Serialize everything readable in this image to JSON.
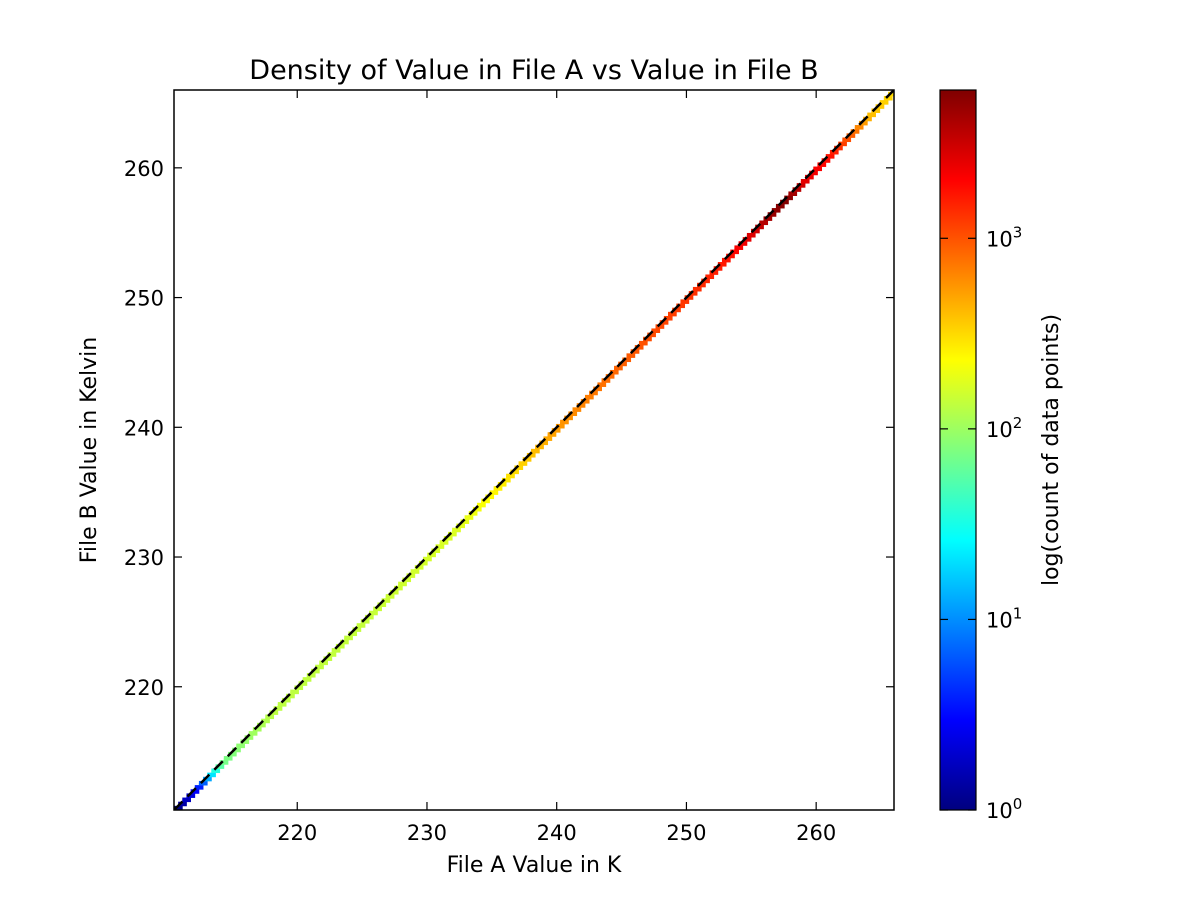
{
  "chart_data": {
    "type": "heatmap",
    "title": "Density of Value in File A vs Value in File B",
    "xlabel": "File A Value in K",
    "ylabel": "File B Value in Kelvin",
    "xlim": [
      210.5,
      266
    ],
    "ylim": [
      210.5,
      266
    ],
    "x_ticks": [
      220,
      230,
      240,
      250,
      260
    ],
    "y_ticks": [
      220,
      230,
      240,
      250,
      260
    ],
    "grid": false,
    "reference_line": {
      "style": "dashed",
      "color": "#000000",
      "from": [
        210.5,
        210.5
      ],
      "to": [
        266,
        266
      ]
    },
    "colorbar": {
      "label": "log(count of data points)",
      "scale": "log",
      "range": [
        1,
        6000
      ],
      "ticks": [
        {
          "value": 1,
          "base": "10",
          "exp": "0"
        },
        {
          "value": 10,
          "base": "10",
          "exp": "1"
        },
        {
          "value": 100,
          "base": "10",
          "exp": "2"
        },
        {
          "value": 1000,
          "base": "10",
          "exp": "3"
        }
      ],
      "colormap": [
        "#00007f",
        "#0000ff",
        "#007fff",
        "#00ffff",
        "#7fff7f",
        "#ffff00",
        "#ff7f00",
        "#ff0000",
        "#7f0000"
      ]
    },
    "density_profile": [
      {
        "x": 210.5,
        "count": 1
      },
      {
        "x": 211.5,
        "count": 2
      },
      {
        "x": 212.3,
        "count": 4
      },
      {
        "x": 213.0,
        "count": 15
      },
      {
        "x": 214.0,
        "count": 70
      },
      {
        "x": 218.0,
        "count": 130
      },
      {
        "x": 225.0,
        "count": 140
      },
      {
        "x": 232.0,
        "count": 170
      },
      {
        "x": 236.0,
        "count": 280
      },
      {
        "x": 240.0,
        "count": 550
      },
      {
        "x": 245.0,
        "count": 900
      },
      {
        "x": 250.0,
        "count": 1300
      },
      {
        "x": 253.0,
        "count": 1700
      },
      {
        "x": 255.0,
        "count": 2800
      },
      {
        "x": 256.5,
        "count": 5000
      },
      {
        "x": 257.5,
        "count": 6000
      },
      {
        "x": 259.0,
        "count": 2500
      },
      {
        "x": 261.0,
        "count": 1700
      },
      {
        "x": 262.5,
        "count": 900
      },
      {
        "x": 264.0,
        "count": 400
      },
      {
        "x": 266.0,
        "count": 300
      }
    ]
  }
}
